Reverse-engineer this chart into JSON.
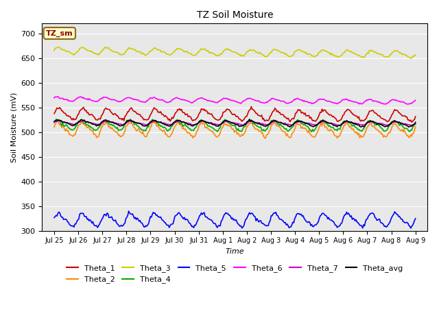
{
  "title": "TZ Soil Moisture",
  "xlabel": "Time",
  "ylabel": "Soil Moisture (mV)",
  "ylim": [
    300,
    720
  ],
  "yticks": [
    300,
    350,
    400,
    450,
    500,
    550,
    600,
    650,
    700
  ],
  "bg_color": "#e8e8e8",
  "fig_color": "#ffffff",
  "n_days": 16,
  "series": {
    "Theta_1": {
      "color": "#cc0000",
      "base": 537,
      "amp": 10,
      "trend": -0.3,
      "phase": 0.0
    },
    "Theta_2": {
      "color": "#ff8800",
      "base": 506,
      "amp": 12,
      "trend": -0.2,
      "phase": 0.3
    },
    "Theta_3": {
      "color": "#cccc00",
      "base": 665,
      "amp": 6,
      "trend": -0.5,
      "phase": 0.1
    },
    "Theta_4": {
      "color": "#00aa00",
      "base": 514,
      "amp": 9,
      "trend": -0.1,
      "phase": 0.5
    },
    "Theta_5": {
      "color": "#0000ff",
      "base": 322,
      "amp": 12,
      "trend": 0.0,
      "phase": 0.2
    },
    "Theta_6": {
      "color": "#ff00ff",
      "base": 567,
      "amp": 4,
      "trend": -0.4,
      "phase": 0.6
    },
    "Theta_7": {
      "color": "#cc00cc",
      "base": 519,
      "amp": 3,
      "trend": -0.1,
      "phase": 0.0
    },
    "Theta_avg": {
      "color": "#000000",
      "base": 519,
      "amp": 5,
      "trend": -0.15,
      "phase": 0.25
    }
  },
  "x_tick_labels": [
    "Jul 25",
    "Jul 26",
    "Jul 27",
    "Jul 28",
    "Jul 29",
    "Jul 30",
    "Jul 31",
    "Aug 1",
    "Aug 2",
    "Aug 3",
    "Aug 4",
    "Aug 5",
    "Aug 6",
    "Aug 7",
    "Aug 8",
    "Aug 9"
  ],
  "legend_order": [
    "Theta_1",
    "Theta_2",
    "Theta_3",
    "Theta_4",
    "Theta_5",
    "Theta_6",
    "Theta_7",
    "Theta_avg"
  ]
}
